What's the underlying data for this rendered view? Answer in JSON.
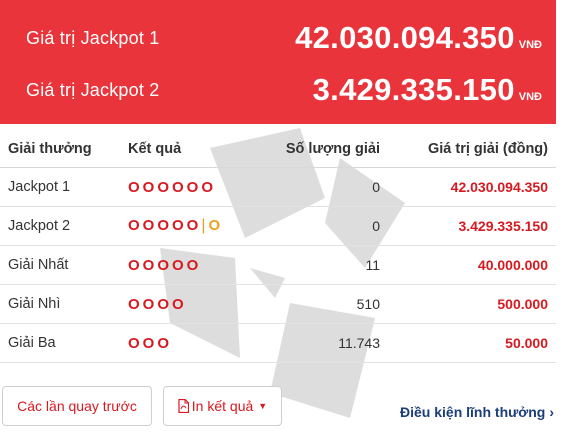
{
  "banner": {
    "jackpot1": {
      "label": "Giá trị Jackpot 1",
      "amount": "42.030.094.350",
      "unit": "VNĐ"
    },
    "jackpot2": {
      "label": "Giá trị Jackpot 2",
      "amount": "3.429.335.150",
      "unit": "VNĐ"
    }
  },
  "table": {
    "headers": [
      "Giải thưởng",
      "Kết quả",
      "Số lượng giải",
      "Giá trị giải (đồng)"
    ],
    "rows": [
      {
        "prize": "Jackpot 1",
        "balls": "OOOOOO",
        "bonus": "",
        "count": "0",
        "value": "42.030.094.350"
      },
      {
        "prize": "Jackpot 2",
        "balls": "OOOOO",
        "bonus": "O",
        "count": "0",
        "value": "3.429.335.150"
      },
      {
        "prize": "Giải Nhất",
        "balls": "OOOOO",
        "bonus": "",
        "count": "11",
        "value": "40.000.000"
      },
      {
        "prize": "Giải Nhì",
        "balls": "OOOO",
        "bonus": "",
        "count": "510",
        "value": "500.000"
      },
      {
        "prize": "Giải Ba",
        "balls": "OOO",
        "bonus": "",
        "count": "11.743",
        "value": "50.000"
      }
    ]
  },
  "actions": {
    "previous_draws": "Các lần quay trước",
    "print_results": "In kết quả",
    "rules_link": "Điều kiện lĩnh thưởng"
  },
  "colors": {
    "banner_bg": "#e8343a",
    "accent_red": "#d71920",
    "bonus_orange": "#f0a020",
    "link_blue": "#1a3e7a"
  },
  "icons": {
    "print": "pdf-icon",
    "print_dropdown": "caret-down-icon",
    "rules_link": "chevron-right-icon"
  }
}
